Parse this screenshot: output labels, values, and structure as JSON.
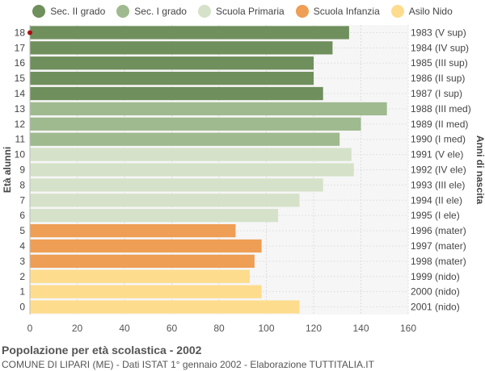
{
  "legend": [
    {
      "name": "Sec. II grado",
      "color": "#6f8f5c"
    },
    {
      "name": "Sec. I grado",
      "color": "#9fba8f"
    },
    {
      "name": "Scuola Primaria",
      "color": "#d5e2c9"
    },
    {
      "name": "Scuola Infanzia",
      "color": "#ee9e55"
    },
    {
      "name": "Asilo Nido",
      "color": "#fddc8e"
    }
  ],
  "footer": {
    "title": "Popolazione per età scolastica - 2002",
    "subtitle": "COMUNE DI LIPARI (ME) - Dati ISTAT 1° gennaio 2002 - Elaborazione TUTTITALIA.IT"
  },
  "chart_data": {
    "type": "bar",
    "orientation": "horizontal",
    "ylabel": "Età alunni",
    "y2label": "Anni di nascita",
    "xlim": [
      0,
      160
    ],
    "xticks": [
      0,
      20,
      40,
      60,
      80,
      100,
      120,
      140,
      160
    ],
    "grid": true,
    "legend_position": "top",
    "bars": [
      {
        "age": "18",
        "year": "1983 (V sup)",
        "value": 135,
        "group": 0
      },
      {
        "age": "17",
        "year": "1984 (IV sup)",
        "value": 128,
        "group": 0
      },
      {
        "age": "16",
        "year": "1985 (III sup)",
        "value": 120,
        "group": 0
      },
      {
        "age": "15",
        "year": "1986 (II sup)",
        "value": 120,
        "group": 0
      },
      {
        "age": "14",
        "year": "1987 (I sup)",
        "value": 124,
        "group": 0
      },
      {
        "age": "13",
        "year": "1988 (III med)",
        "value": 151,
        "group": 1
      },
      {
        "age": "12",
        "year": "1989 (II med)",
        "value": 140,
        "group": 1
      },
      {
        "age": "11",
        "year": "1990 (I med)",
        "value": 131,
        "group": 1
      },
      {
        "age": "10",
        "year": "1991 (V ele)",
        "value": 136,
        "group": 2
      },
      {
        "age": "9",
        "year": "1992 (IV ele)",
        "value": 137,
        "group": 2
      },
      {
        "age": "8",
        "year": "1993 (III ele)",
        "value": 124,
        "group": 2
      },
      {
        "age": "7",
        "year": "1994 (II ele)",
        "value": 114,
        "group": 2
      },
      {
        "age": "6",
        "year": "1995 (I ele)",
        "value": 105,
        "group": 2
      },
      {
        "age": "5",
        "year": "1996 (mater)",
        "value": 87,
        "group": 3
      },
      {
        "age": "4",
        "year": "1997 (mater)",
        "value": 98,
        "group": 3
      },
      {
        "age": "3",
        "year": "1998 (mater)",
        "value": 95,
        "group": 3
      },
      {
        "age": "2",
        "year": "1999 (nido)",
        "value": 93,
        "group": 4
      },
      {
        "age": "1",
        "year": "2000 (nido)",
        "value": 98,
        "group": 4
      },
      {
        "age": "0",
        "year": "2001 (nido)",
        "value": 114,
        "group": 4
      }
    ]
  }
}
